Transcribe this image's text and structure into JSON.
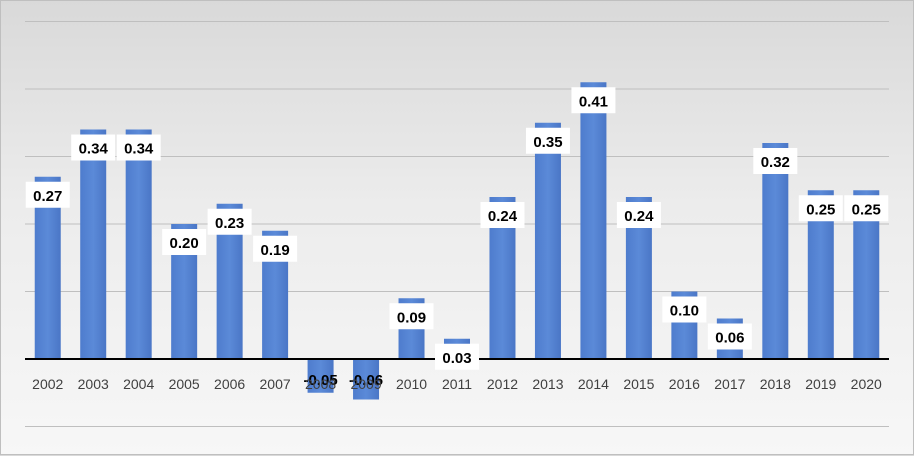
{
  "chart_data": {
    "type": "bar",
    "title": "",
    "xlabel": "",
    "ylabel": "",
    "categories": [
      "2002",
      "2003",
      "2004",
      "2005",
      "2006",
      "2007",
      "2008",
      "2009",
      "2010",
      "2011",
      "2012",
      "2013",
      "2014",
      "2015",
      "2016",
      "2017",
      "2018",
      "2019",
      "2020"
    ],
    "values": [
      0.27,
      0.34,
      0.34,
      0.2,
      0.23,
      0.19,
      -0.05,
      -0.06,
      0.09,
      0.03,
      0.24,
      0.35,
      0.41,
      0.24,
      0.1,
      0.06,
      0.32,
      0.25,
      0.25
    ],
    "data_labels": [
      "0.27",
      "0.34",
      "0.34",
      "0.20",
      "0.23",
      "0.19",
      "-0.05",
      "-0.06",
      "0.09",
      "0.03",
      "0.24",
      "0.35",
      "0.41",
      "0.24",
      "0.10",
      "0.06",
      "0.32",
      "0.25",
      "0.25"
    ],
    "ylim": [
      -0.1,
      0.5
    ],
    "gridlines": true,
    "legend": false,
    "colors": {
      "bar": "#4472c4",
      "grid": "#bfbfbf",
      "axis": "#000000",
      "label_box": "#ffffff"
    }
  }
}
